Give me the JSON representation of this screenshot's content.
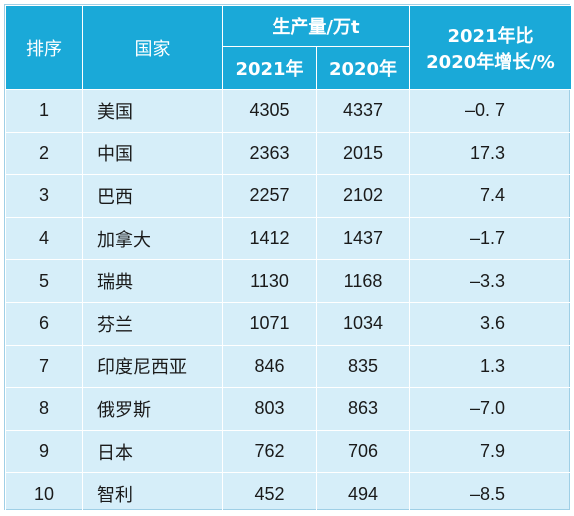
{
  "header": {
    "rank": "排序",
    "country": "国家",
    "production": "生产量/万t",
    "year2021": "2021年",
    "year2020": "2020年",
    "change_line1": "2021年比",
    "change_line2": "2020年增长/%"
  },
  "rows": [
    {
      "rank": "1",
      "country": "美国",
      "y2021": "4305",
      "y2020": "4337",
      "change": "–0. 7"
    },
    {
      "rank": "2",
      "country": "中国",
      "y2021": "2363",
      "y2020": "2015",
      "change": "17.3"
    },
    {
      "rank": "3",
      "country": "巴西",
      "y2021": "2257",
      "y2020": "2102",
      "change": "7.4"
    },
    {
      "rank": "4",
      "country": "加拿大",
      "y2021": "1412",
      "y2020": "1437",
      "change": "–1.7"
    },
    {
      "rank": "5",
      "country": "瑞典",
      "y2021": "1130",
      "y2020": "1168",
      "change": "–3.3"
    },
    {
      "rank": "6",
      "country": "芬兰",
      "y2021": "1071",
      "y2020": "1034",
      "change": "3.6"
    },
    {
      "rank": "7",
      "country": "印度尼西亚",
      "y2021": "846",
      "y2020": "835",
      "change": "1.3"
    },
    {
      "rank": "8",
      "country": "俄罗斯",
      "y2021": "803",
      "y2020": "863",
      "change": "–7.0"
    },
    {
      "rank": "9",
      "country": "日本",
      "y2021": "762",
      "y2020": "706",
      "change": "7.9"
    },
    {
      "rank": "10",
      "country": "智利",
      "y2021": "452",
      "y2020": "494",
      "change": "–8.5"
    }
  ],
  "colors": {
    "header_bg": "#1aa9d8",
    "row_bg": "#d6eef9",
    "border": "#ffffff"
  }
}
